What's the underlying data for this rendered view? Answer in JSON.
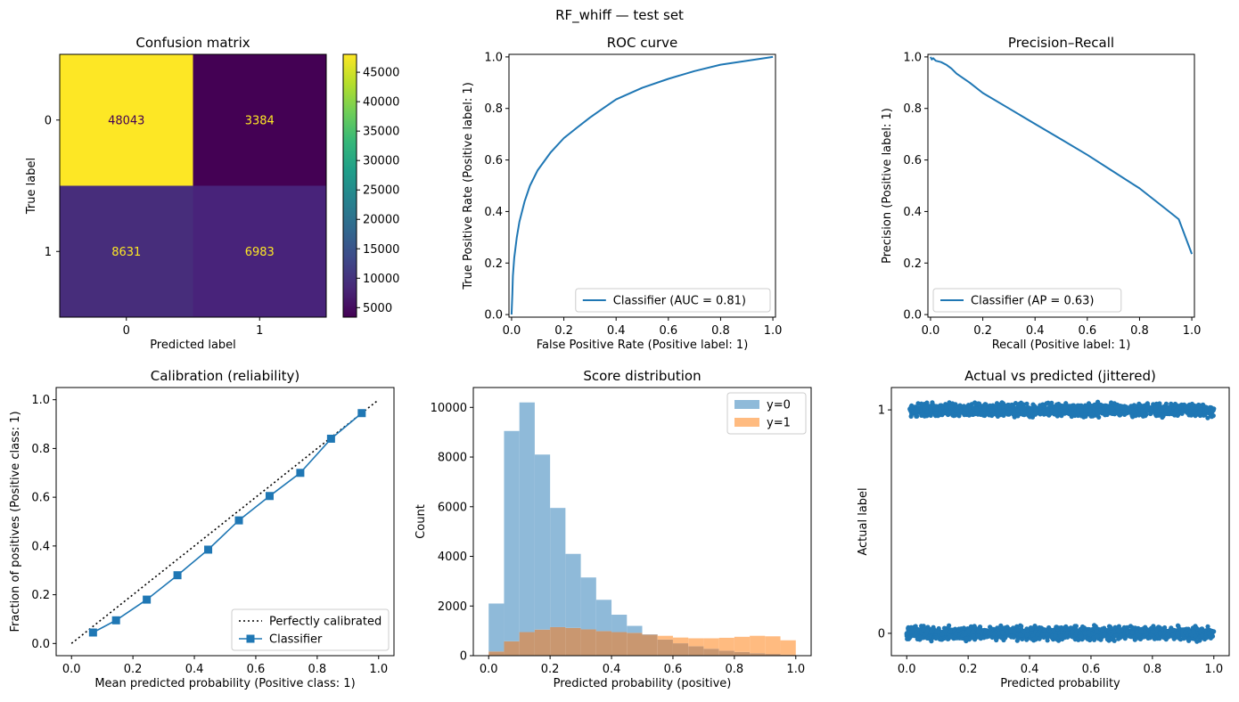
{
  "suptitle": "RF_whiff — test set",
  "colors": {
    "blue": "#1f77b4",
    "hist0": "#8fbad9",
    "hist1": "#ffbb80",
    "overlap": "#c99770",
    "cm_high": "#fde725",
    "cm_low": "#440154"
  },
  "chart_data": [
    {
      "type": "heatmap",
      "title": "Confusion matrix",
      "xlabel": "Predicted label",
      "ylabel": "True label",
      "row_labels": [
        "0",
        "1"
      ],
      "col_labels": [
        "0",
        "1"
      ],
      "matrix": [
        [
          48043,
          3384
        ],
        [
          8631,
          6983
        ]
      ],
      "cell_colors": [
        [
          "#fde725",
          "#440154"
        ],
        [
          "#472d7b",
          "#48237a"
        ]
      ],
      "text_colors": [
        [
          "#440154",
          "#fde725"
        ],
        [
          "#fde725",
          "#fde725"
        ]
      ],
      "colorbar": {
        "colormap": "viridis",
        "range": [
          3384,
          48043
        ],
        "ticks": [
          "5000",
          "10000",
          "15000",
          "20000",
          "25000",
          "30000",
          "35000",
          "40000",
          "45000"
        ]
      }
    },
    {
      "type": "line",
      "title": "ROC curve",
      "xlabel": "False Positive Rate (Positive label: 1)",
      "ylabel": "True Positive Rate (Positive label: 1)",
      "xlim": [
        -0.01,
        1.01
      ],
      "ylim": [
        -0.01,
        1.01
      ],
      "xticks": [
        "0.0",
        "0.2",
        "0.4",
        "0.6",
        "0.8",
        "1.0"
      ],
      "yticks": [
        "0.0",
        "0.2",
        "0.4",
        "0.6",
        "0.8",
        "1.0"
      ],
      "legend": "lower-right",
      "series": [
        {
          "name": "Classifier (AUC = 0.81)",
          "x": [
            0.0,
            0.003,
            0.005,
            0.01,
            0.02,
            0.03,
            0.05,
            0.07,
            0.1,
            0.15,
            0.2,
            0.25,
            0.3,
            0.35,
            0.4,
            0.5,
            0.6,
            0.7,
            0.8,
            0.9,
            1.0
          ],
          "y": [
            0.0,
            0.08,
            0.15,
            0.22,
            0.3,
            0.36,
            0.44,
            0.5,
            0.56,
            0.63,
            0.685,
            0.725,
            0.765,
            0.8,
            0.835,
            0.88,
            0.915,
            0.945,
            0.97,
            0.985,
            1.0
          ]
        }
      ]
    },
    {
      "type": "line",
      "title": "Precision–Recall",
      "xlabel": "Recall (Positive label: 1)",
      "ylabel": "Precision (Positive label: 1)",
      "xlim": [
        -0.01,
        1.01
      ],
      "ylim": [
        -0.01,
        1.01
      ],
      "xticks": [
        "0.0",
        "0.2",
        "0.4",
        "0.6",
        "0.8",
        "1.0"
      ],
      "yticks": [
        "0.0",
        "0.2",
        "0.4",
        "0.6",
        "0.8",
        "1.0"
      ],
      "legend": "lower-left",
      "series": [
        {
          "name": "Classifier (AP = 0.63)",
          "x": [
            0.0,
            0.005,
            0.01,
            0.02,
            0.04,
            0.06,
            0.08,
            0.1,
            0.15,
            0.2,
            0.3,
            0.4,
            0.5,
            0.6,
            0.7,
            0.8,
            0.9,
            0.95,
            1.0
          ],
          "y": [
            1.0,
            0.99,
            0.995,
            0.985,
            0.98,
            0.97,
            0.955,
            0.935,
            0.9,
            0.86,
            0.8,
            0.74,
            0.68,
            0.62,
            0.555,
            0.49,
            0.41,
            0.37,
            0.235
          ]
        }
      ]
    },
    {
      "type": "line",
      "title": "Calibration (reliability)",
      "xlabel": "Mean predicted probability (Positive class: 1)",
      "ylabel": "Fraction of positives (Positive class: 1)",
      "xlim": [
        -0.05,
        1.05
      ],
      "ylim": [
        -0.05,
        1.05
      ],
      "xticks": [
        "0.0",
        "0.2",
        "0.4",
        "0.6",
        "0.8",
        "1.0"
      ],
      "yticks": [
        "0.0",
        "0.2",
        "0.4",
        "0.6",
        "0.8",
        "1.0"
      ],
      "legend": "lower-right",
      "series": [
        {
          "name": "Perfectly calibrated",
          "x": [
            0,
            1
          ],
          "y": [
            0,
            1
          ]
        },
        {
          "name": "Classifier",
          "x": [
            0.07,
            0.145,
            0.245,
            0.345,
            0.445,
            0.545,
            0.645,
            0.745,
            0.845,
            0.945
          ],
          "y": [
            0.045,
            0.095,
            0.18,
            0.28,
            0.385,
            0.505,
            0.605,
            0.7,
            0.84,
            0.945
          ]
        }
      ]
    },
    {
      "type": "bar",
      "title": "Score distribution",
      "xlabel": "Predicted probability (positive)",
      "ylabel": "Count",
      "xlim": [
        -0.05,
        1.05
      ],
      "ylim": [
        0,
        10800
      ],
      "xticks": [
        "0.0",
        "0.2",
        "0.4",
        "0.6",
        "0.8",
        "1.0"
      ],
      "yticks": [
        "0",
        "2000",
        "4000",
        "6000",
        "8000",
        "10000"
      ],
      "legend": "top-right",
      "bin_edges": [
        0.0,
        0.05,
        0.1,
        0.15,
        0.2,
        0.25,
        0.3,
        0.35,
        0.4,
        0.45,
        0.5,
        0.55,
        0.6,
        0.65,
        0.7,
        0.75,
        0.8,
        0.85,
        0.9,
        0.95,
        1.0
      ],
      "series": [
        {
          "name": "y=0",
          "values": [
            2100,
            9050,
            10200,
            8100,
            5950,
            4100,
            3150,
            2250,
            1650,
            1200,
            860,
            650,
            500,
            380,
            280,
            200,
            150,
            100,
            70,
            40
          ]
        },
        {
          "name": "y=1",
          "values": [
            170,
            580,
            950,
            1050,
            1150,
            1120,
            1060,
            990,
            950,
            920,
            850,
            800,
            730,
            700,
            700,
            720,
            760,
            800,
            780,
            620
          ]
        }
      ]
    },
    {
      "type": "scatter",
      "title": "Actual vs predicted (jittered)",
      "xlabel": "Predicted probability",
      "ylabel": "Actual label",
      "xlim": [
        -0.05,
        1.05
      ],
      "ylim": [
        -0.1,
        1.1
      ],
      "xticks": [
        "0.0",
        "0.2",
        "0.4",
        "0.6",
        "0.8",
        "1.0"
      ],
      "yticks": [
        "0",
        "1"
      ],
      "series": [
        {
          "name": "0",
          "x_range": [
            0.0,
            1.0
          ],
          "y": 0,
          "jitter": 0.04
        },
        {
          "name": "1",
          "x_range": [
            0.01,
            1.0
          ],
          "y": 1,
          "jitter": 0.04
        }
      ]
    }
  ]
}
